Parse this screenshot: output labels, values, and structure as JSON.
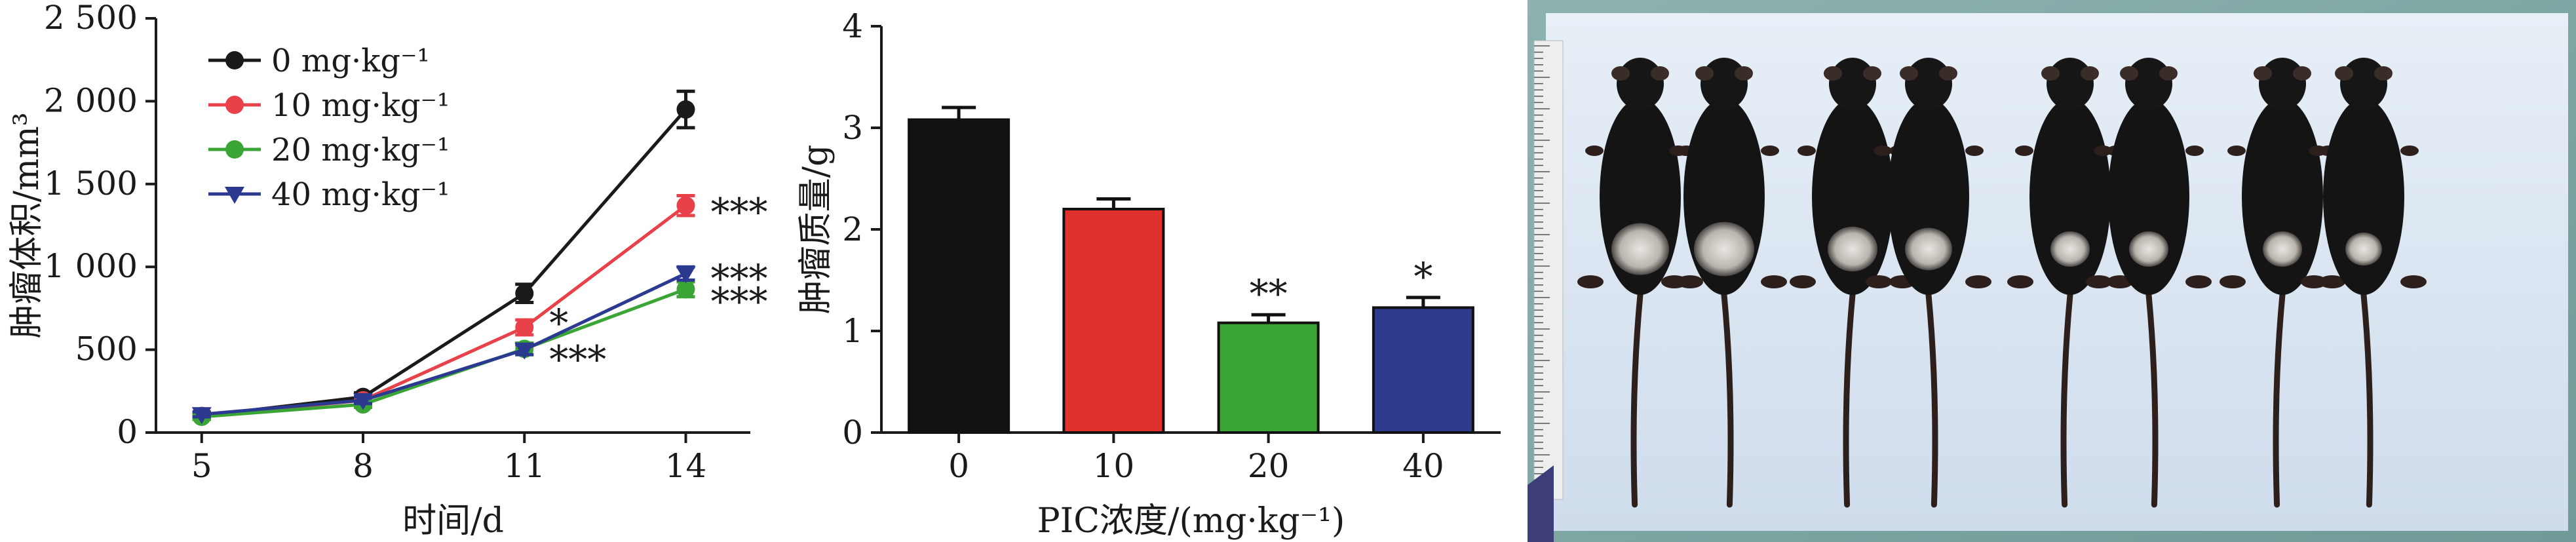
{
  "chart_data": [
    {
      "type": "line",
      "xlabel": "时间/d",
      "ylabel": "肿瘤体积/mm³",
      "x": [
        5,
        8,
        11,
        14
      ],
      "ylim": [
        0,
        2500
      ],
      "y_tick_labels": [
        "0",
        "500",
        "1 000",
        "1 500",
        "2 000",
        "2 500"
      ],
      "grid": false,
      "legend_position": "top-left",
      "series": [
        {
          "name": "0 mg·kg⁻¹",
          "color": "#1a1a1a",
          "marker": "circle",
          "values": [
            100,
            215,
            840,
            1950
          ],
          "errors": [
            20,
            25,
            55,
            110
          ]
        },
        {
          "name": "10 mg·kg⁻¹",
          "color": "#e8414a",
          "marker": "circle",
          "values": [
            100,
            195,
            635,
            1370
          ],
          "errors": [
            15,
            20,
            45,
            60
          ]
        },
        {
          "name": "20 mg·kg⁻¹",
          "color": "#3aa535",
          "marker": "circle",
          "values": [
            95,
            170,
            505,
            865
          ],
          "errors": [
            15,
            18,
            35,
            45
          ]
        },
        {
          "name": "40 mg·kg⁻¹",
          "color": "#2b3990",
          "marker": "triangle",
          "values": [
            110,
            195,
            500,
            960
          ],
          "errors": [
            15,
            20,
            30,
            40
          ]
        }
      ],
      "annotations": [
        {
          "text": "*",
          "x": 11,
          "y": 700
        },
        {
          "text": "***",
          "x": 11,
          "y": 480
        },
        {
          "text": "***",
          "x": 14,
          "y": 1370
        },
        {
          "text": "***",
          "x": 14,
          "y": 970
        },
        {
          "text": "***",
          "x": 14,
          "y": 830
        }
      ]
    },
    {
      "type": "bar",
      "xlabel": "PIC浓度/(mg·kg⁻¹)",
      "ylabel": "肿瘤质量/g",
      "categories": [
        "0",
        "10",
        "20",
        "40"
      ],
      "values": [
        3.08,
        2.2,
        1.08,
        1.23
      ],
      "errors": [
        0.12,
        0.1,
        0.08,
        0.1
      ],
      "colors": [
        "#111111",
        "#e0312d",
        "#3aa535",
        "#2e3a8c"
      ],
      "ylim": [
        0,
        4
      ],
      "y_tick_labels": [
        "0",
        "1",
        "2",
        "3",
        "4"
      ],
      "grid": false,
      "annotations": [
        "",
        "",
        "**",
        "*"
      ]
    }
  ]
}
